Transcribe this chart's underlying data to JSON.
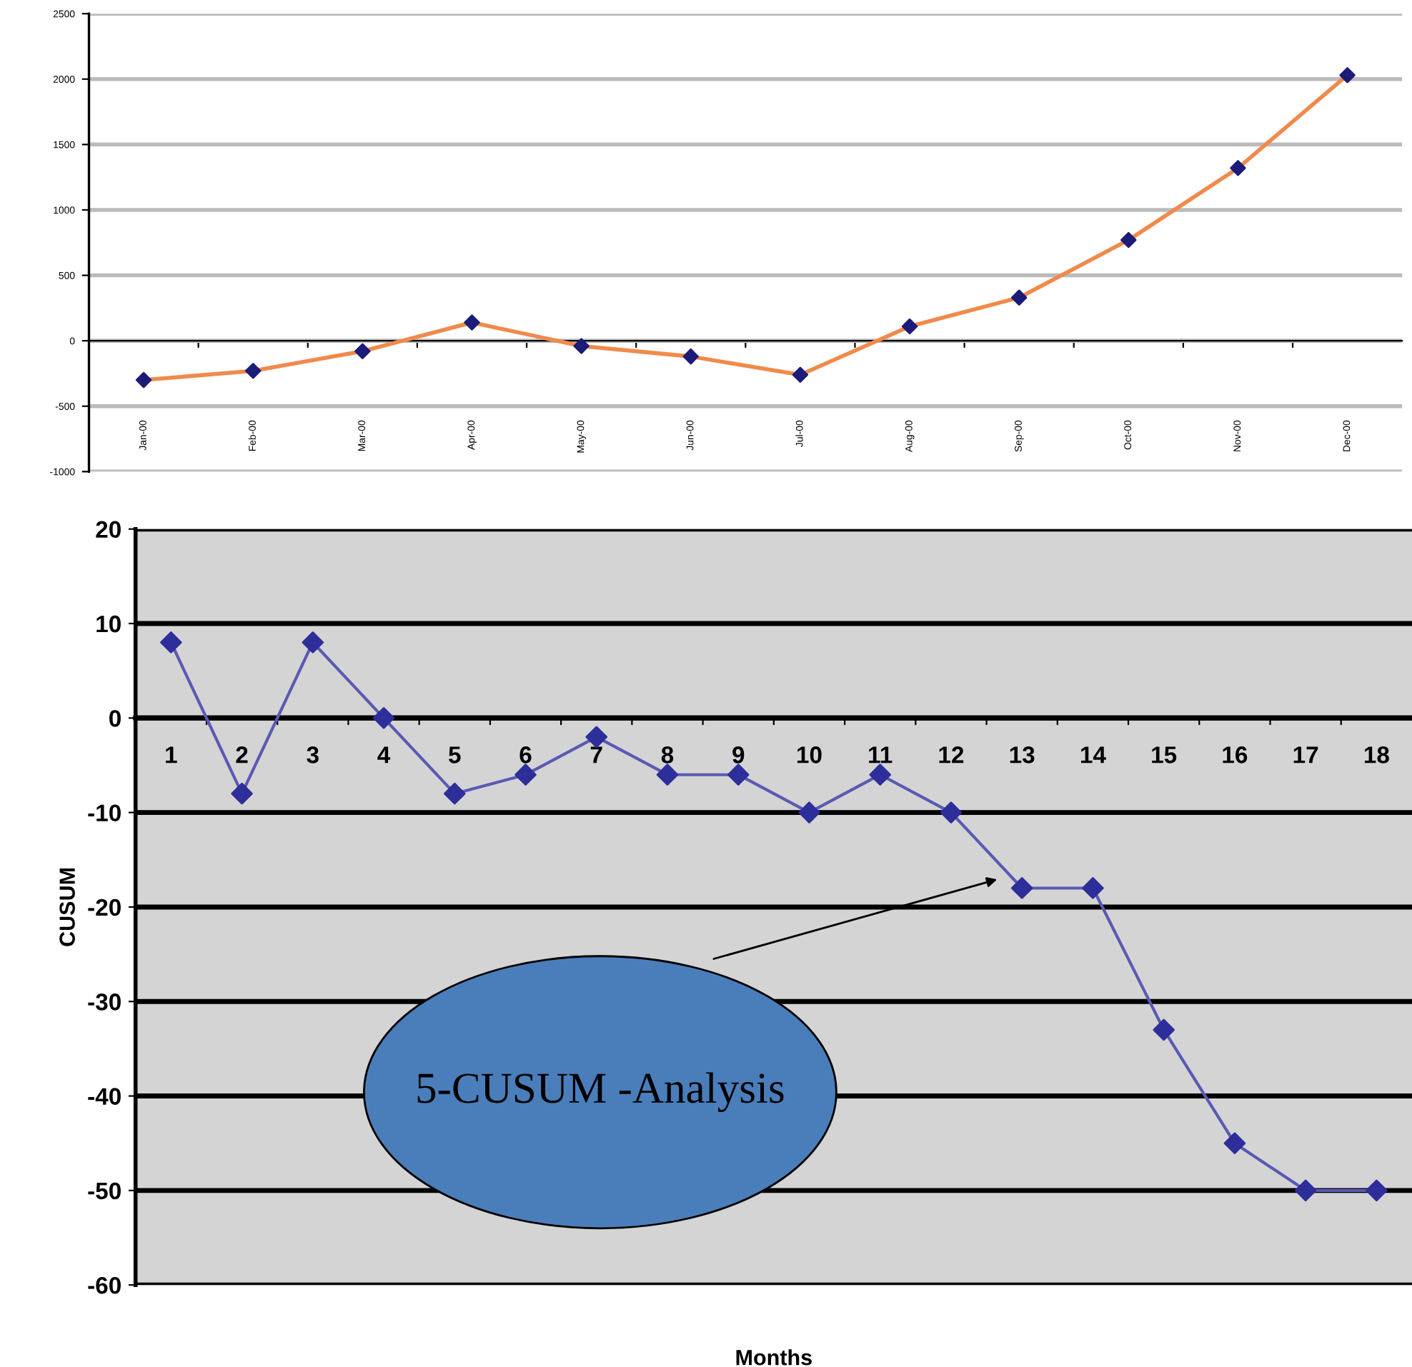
{
  "chart_data": [
    {
      "type": "line",
      "categories": [
        "Jan-00",
        "Feb-00",
        "Mar-00",
        "Apr-00",
        "May-00",
        "Jun-00",
        "Jul-00",
        "Aug-00",
        "Sep-00",
        "Oct-00",
        "Nov-00",
        "Dec-00"
      ],
      "series": [
        {
          "color": "#f08a4b",
          "colors": [
            "#1c1c78",
            "#1c1c78",
            "#1c1c78",
            "#1c1c78",
            "#1c1c78",
            "#1c1c78",
            "#1c1c78",
            "#1c1c78",
            "#1c1c78",
            "#1c1c78",
            "#1c1c78",
            "#1c1c78"
          ],
          "values": [
            -300,
            -230,
            -80,
            140,
            -40,
            -120,
            -260,
            110,
            330,
            770,
            1320,
            2030
          ]
        }
      ],
      "ylim": [
        -1000,
        2500
      ],
      "yticks": [
        -1000,
        -500,
        0,
        500,
        1000,
        1500,
        2000,
        2500
      ],
      "grid": "y",
      "marker": "diamond",
      "line_style": "solid"
    },
    {
      "type": "line",
      "categories": [
        "1",
        "2",
        "3",
        "4",
        "5",
        "6",
        "7",
        "8",
        "9",
        "10",
        "11",
        "12",
        "13",
        "14",
        "15",
        "16",
        "17",
        "18"
      ],
      "series": [
        {
          "color": "#5a5ab4",
          "colors": [
            "#2e2e9a",
            "#2e2e9a",
            "#2e2e9a",
            "#2e2e9a",
            "#2e2e9a",
            "#2e2e9a",
            "#2e2e9a",
            "#2e2e9a",
            "#2e2e9a",
            "#2e2e9a",
            "#2e2e9a",
            "#2e2e9a",
            "#2e2e9a",
            "#2e2e9a",
            "#2e2e9a",
            "#2e2e9a",
            "#2e2e9a",
            "#2e2e9a"
          ],
          "values": [
            8,
            -8,
            8,
            0,
            -8,
            -6,
            -2,
            -6,
            -6,
            -10,
            -6,
            -10,
            -18,
            -18,
            -33,
            -45,
            -50,
            -50
          ]
        }
      ],
      "ylim": [
        -60,
        20
      ],
      "yticks": [
        -60,
        -50,
        -40,
        -30,
        -20,
        -10,
        0,
        10,
        20
      ],
      "grid": "y",
      "marker": "diamond",
      "line_style": "solid",
      "xlabel": "Months",
      "ylabel": "CUSUM",
      "annotations": [
        "5-CUSUM -Analysis"
      ]
    }
  ]
}
